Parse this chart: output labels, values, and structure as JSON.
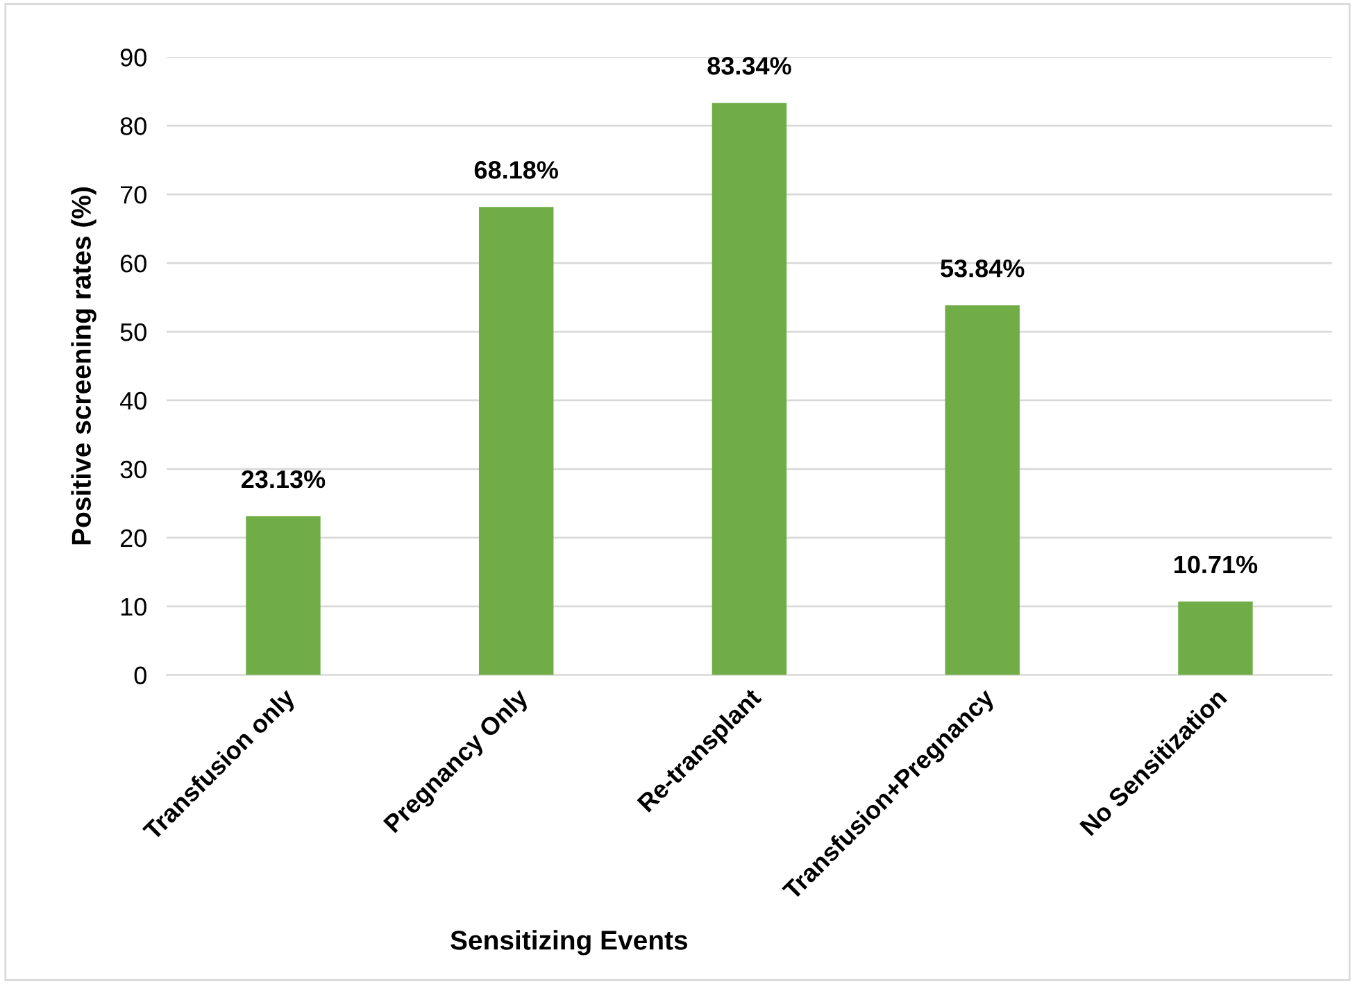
{
  "chart_data": {
    "type": "bar",
    "xlabel": "Sensitizing Events",
    "ylabel": "Positive screening rates (%)",
    "categories": [
      "Transfusion only",
      "Pregnancy Only",
      "Re-transplant",
      "Transfusion+Pregnancy",
      "No Sensitization"
    ],
    "values": [
      23.13,
      68.18,
      83.34,
      53.84,
      10.71
    ],
    "value_labels": [
      "23.13%",
      "68.18%",
      "83.34%",
      "53.84%",
      "10.71%"
    ],
    "color": "#70ad47",
    "ylim": [
      0,
      90
    ],
    "yticks": [
      0,
      10,
      20,
      30,
      40,
      50,
      60,
      70,
      80,
      90
    ],
    "grid": "y",
    "legend": false
  }
}
